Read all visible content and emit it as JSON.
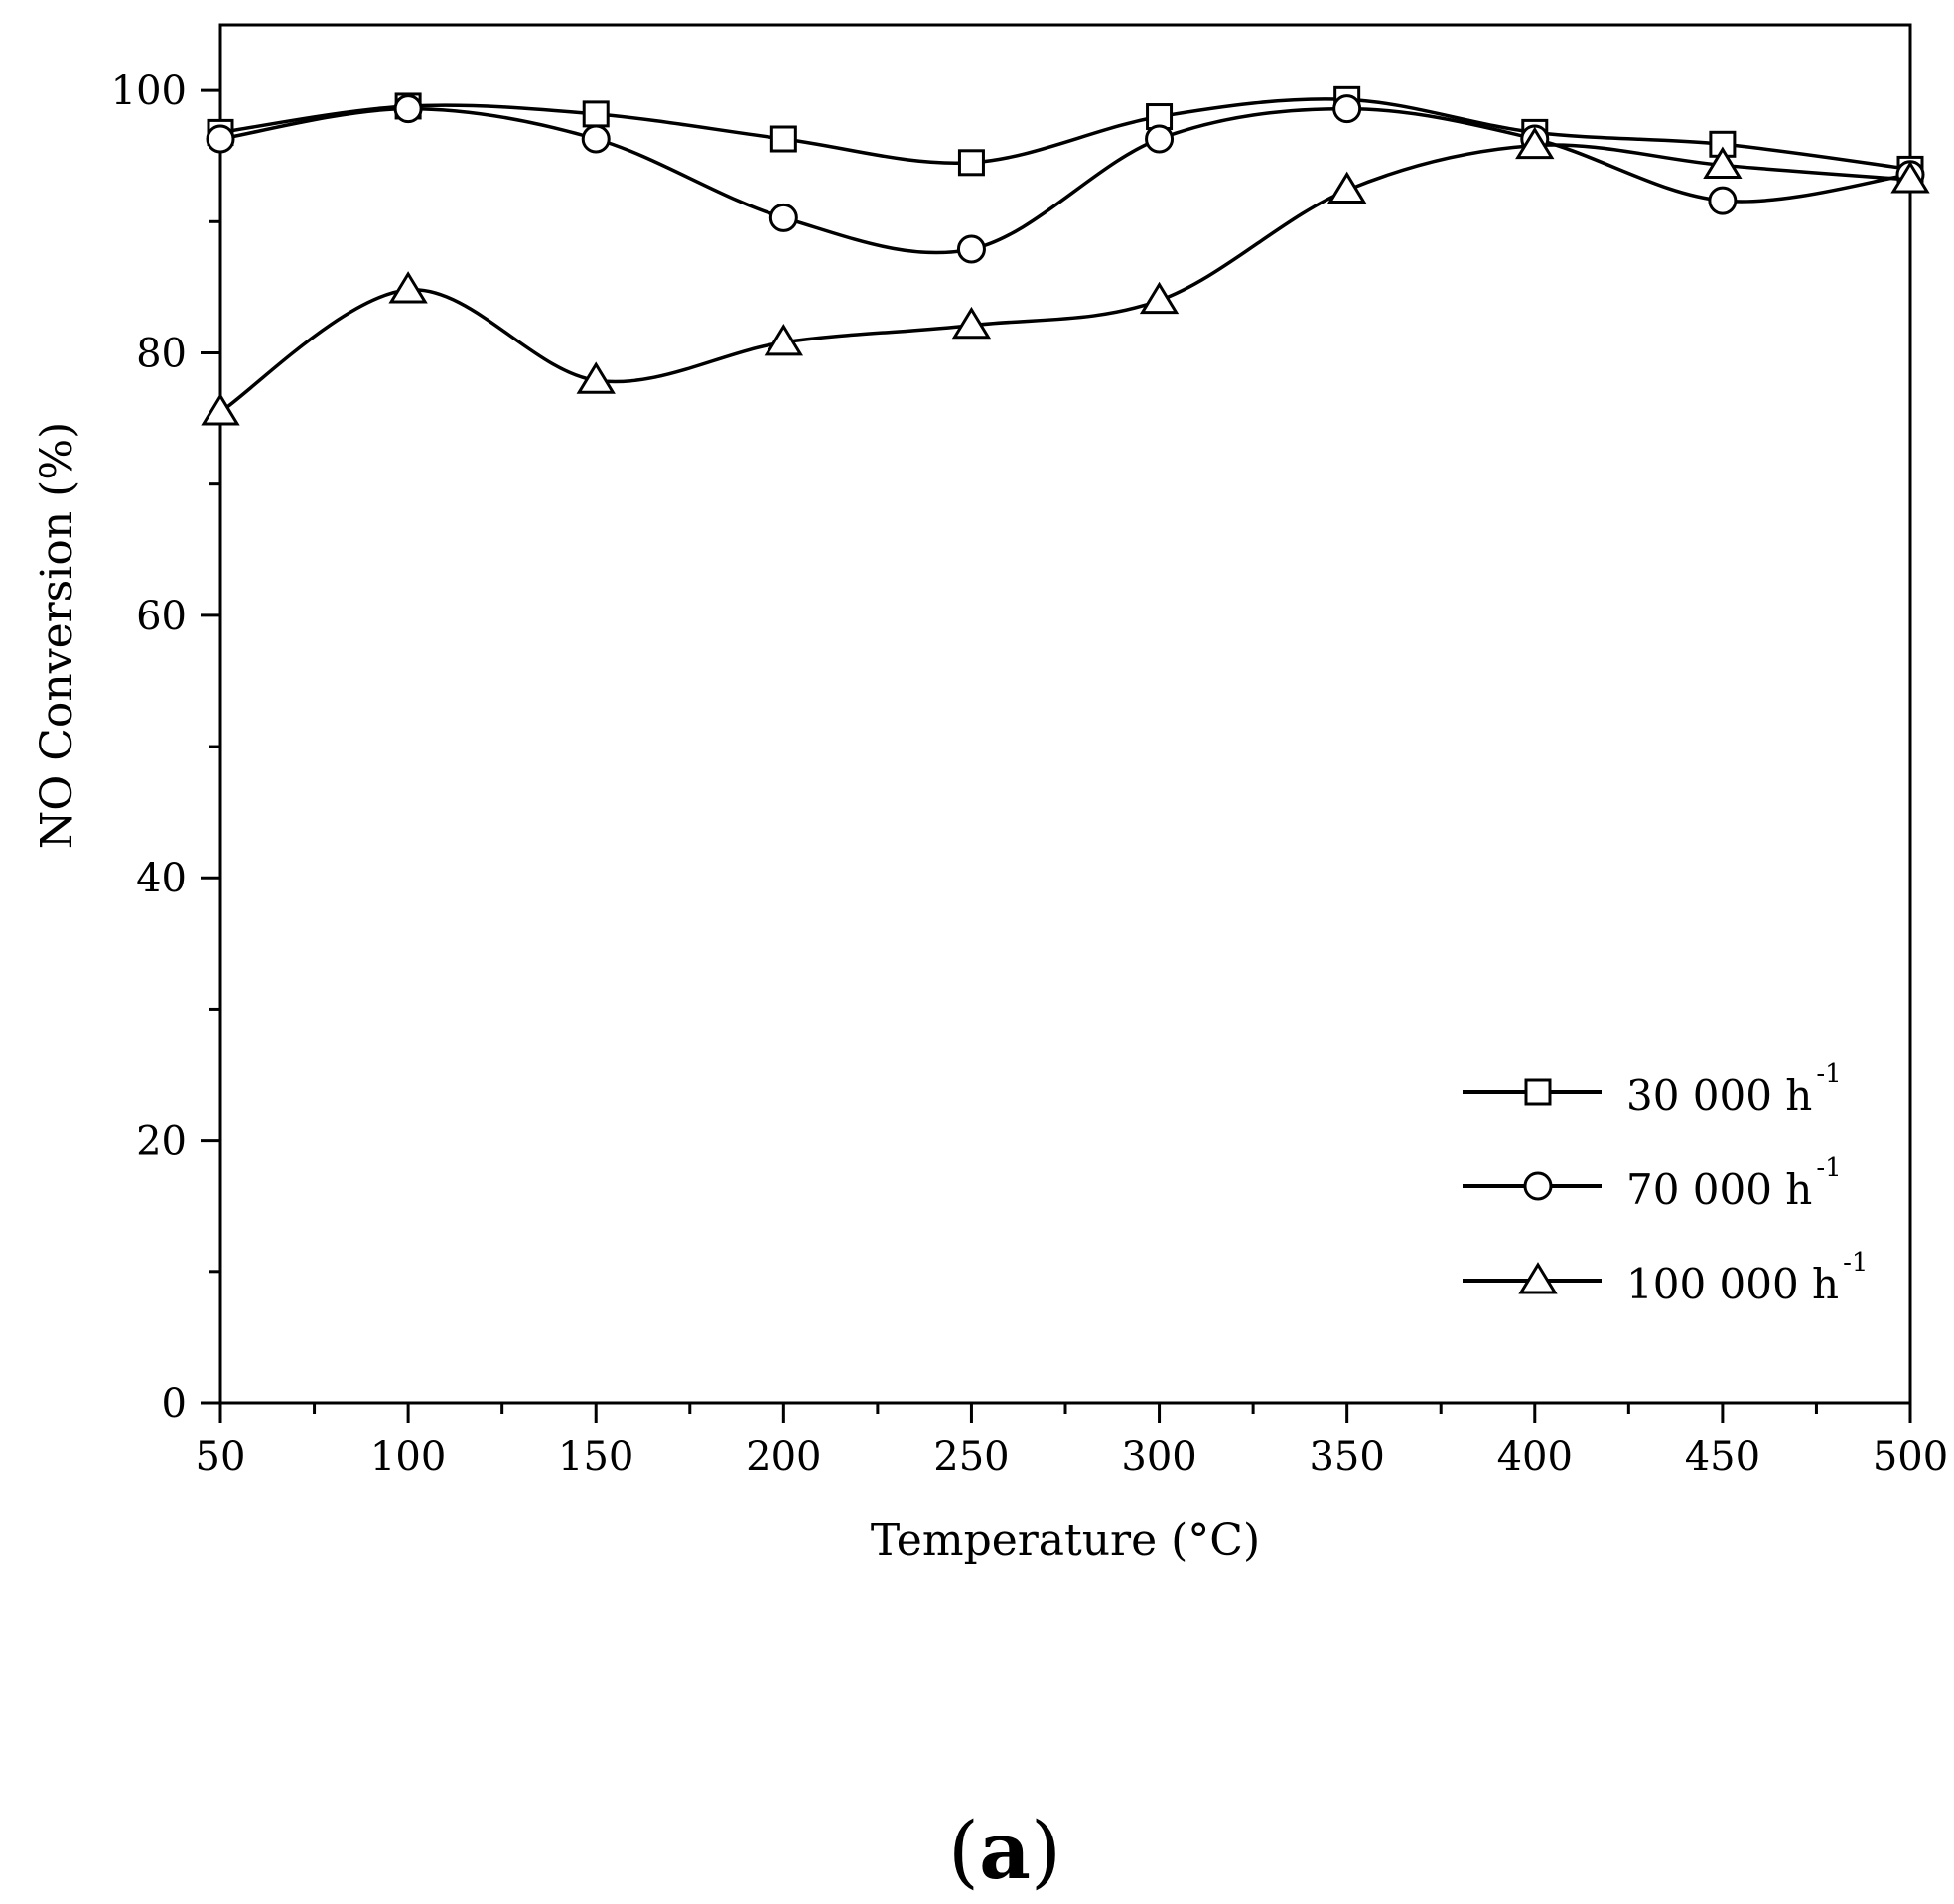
{
  "chart_data": {
    "type": "line",
    "xlabel": "Temperature (°C)",
    "ylabel": "NO Conversion (%)",
    "xlim": [
      50,
      500
    ],
    "ylim": [
      0,
      105
    ],
    "x_ticks": [
      50,
      100,
      150,
      200,
      250,
      300,
      350,
      400,
      450,
      500
    ],
    "y_ticks": [
      0,
      20,
      40,
      60,
      80,
      100
    ],
    "grid": false,
    "legend_position": "bottom-right",
    "x": [
      50,
      100,
      150,
      200,
      250,
      300,
      350,
      400,
      450,
      500
    ],
    "series": [
      {
        "legend_main": "30 000 h",
        "legend_sup": "-1",
        "marker": "square",
        "values": [
          96.8,
          98.8,
          98.2,
          96.3,
          94.5,
          98.0,
          99.3,
          96.8,
          95.9,
          94.0
        ]
      },
      {
        "legend_main": "70 000 h",
        "legend_sup": "-1",
        "marker": "circle",
        "values": [
          96.3,
          98.6,
          96.3,
          90.3,
          87.9,
          96.3,
          98.6,
          96.3,
          91.6,
          93.6
        ]
      },
      {
        "legend_main": "100 000 h",
        "legend_sup": "-1",
        "marker": "triangle",
        "values": [
          75.5,
          84.8,
          77.9,
          80.8,
          82.1,
          84.0,
          92.4,
          95.8,
          94.3,
          93.2
        ]
      }
    ],
    "panel_label": {
      "open": "(",
      "letter": "a",
      "close": ")"
    }
  }
}
